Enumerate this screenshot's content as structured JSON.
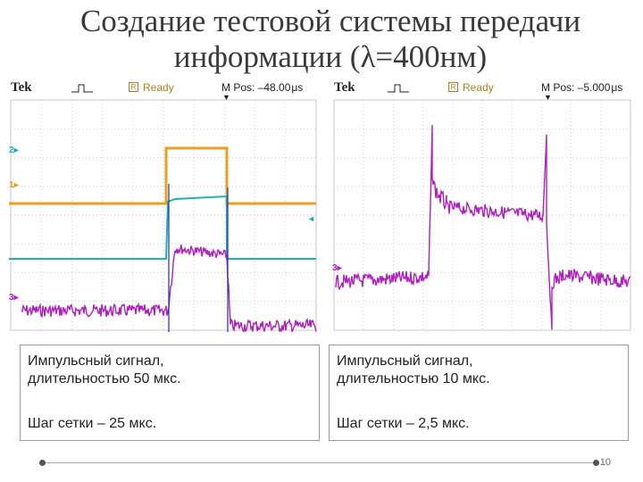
{
  "slide": {
    "title_line1": "Создание тестовой системы передачи",
    "title_line2": "информации (λ=400нм)",
    "page_number": "10"
  },
  "scope_left": {
    "brand": "Tek",
    "status_box": "R",
    "status": "Ready",
    "mpos": "M Pos: –48.00 μs",
    "channels": {
      "ch1": "1",
      "ch2": "2",
      "ch3": "3"
    }
  },
  "scope_right": {
    "brand": "Tek",
    "status_box": "R",
    "status": "Ready",
    "mpos": "M Pos: –5.000 μs",
    "channels": {
      "ch3": "3"
    }
  },
  "captions": {
    "left": {
      "line1": "Импульсный сигнал,",
      "line2": "длительностью 50 мкс.",
      "line3": "Шаг сетки – 25 мкс."
    },
    "right": {
      "line1": "Импульсный сигнал,",
      "line2": "длительностью 10 мкс.",
      "line3": "Шаг сетки – 2,5 мкс."
    }
  },
  "colors": {
    "ch1": "#e8a020",
    "ch2": "#20b0b0",
    "ch3": "#b020c0",
    "grid": "#c8c8c8"
  }
}
